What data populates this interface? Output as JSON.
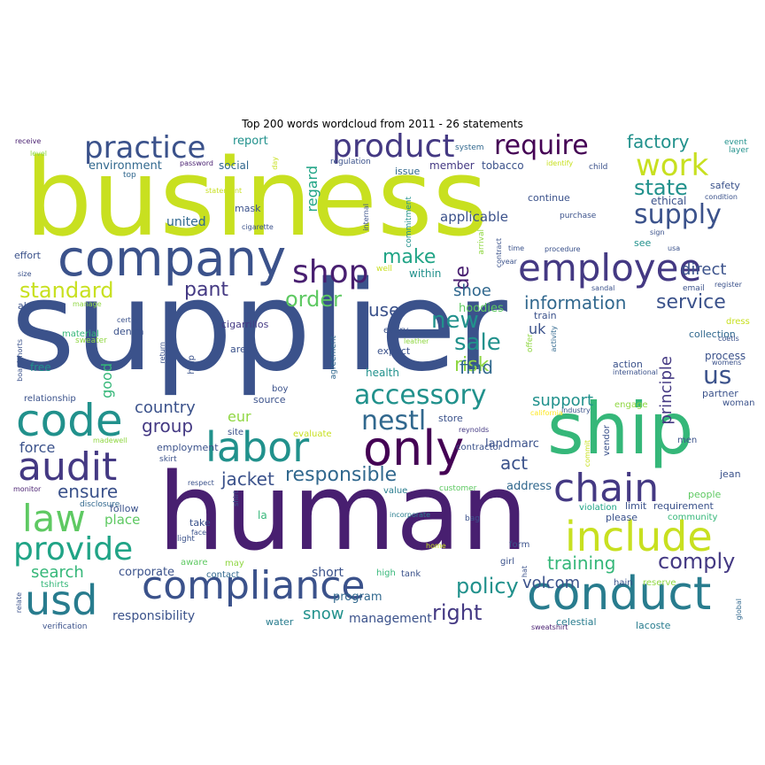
{
  "title": "Top 200 words wordcloud from 2011 - 26 statements",
  "chart_data": {
    "type": "wordcloud",
    "title": "Top 200 words wordcloud from 2011 - 26 statements",
    "colormap": "viridis",
    "words": [
      {
        "text": "supplier",
        "rank": 1
      },
      {
        "text": "business",
        "rank": 2
      },
      {
        "text": "human",
        "rank": 3
      },
      {
        "text": "ship",
        "rank": 4
      },
      {
        "text": "company",
        "rank": 5
      },
      {
        "text": "code",
        "rank": 6
      },
      {
        "text": "conduct",
        "rank": 7
      },
      {
        "text": "compliance",
        "rank": 8
      },
      {
        "text": "labor",
        "rank": 9
      },
      {
        "text": "only",
        "rank": 10
      },
      {
        "text": "employee",
        "rank": 11
      },
      {
        "text": "usd",
        "rank": 12
      },
      {
        "text": "audit",
        "rank": 13
      },
      {
        "text": "include",
        "rank": 14
      },
      {
        "text": "product",
        "rank": 15
      },
      {
        "text": "practice",
        "rank": 16
      },
      {
        "text": "chain",
        "rank": 17
      },
      {
        "text": "law",
        "rank": 18
      },
      {
        "text": "provide",
        "rank": 19
      },
      {
        "text": "require",
        "rank": 20
      },
      {
        "text": "work",
        "rank": 21
      },
      {
        "text": "shop",
        "rank": 22
      },
      {
        "text": "supply",
        "rank": 23
      },
      {
        "text": "accessory",
        "rank": 24
      },
      {
        "text": "responsible",
        "rank": 25
      },
      {
        "text": "comply",
        "rank": 26
      },
      {
        "text": "nestl",
        "rank": 27
      },
      {
        "text": "standard",
        "rank": 28
      },
      {
        "text": "policy",
        "rank": 29
      },
      {
        "text": "state",
        "rank": 30
      },
      {
        "text": "order",
        "rank": 31
      },
      {
        "text": "make",
        "rank": 32
      },
      {
        "text": "sale",
        "rank": 33
      },
      {
        "text": "new",
        "rank": 34
      },
      {
        "text": "information",
        "rank": 35
      },
      {
        "text": "service",
        "rank": 36
      },
      {
        "text": "right",
        "rank": 37
      },
      {
        "text": "training",
        "rank": 38
      },
      {
        "text": "us",
        "rank": 39
      },
      {
        "text": "risk",
        "rank": 40
      },
      {
        "text": "pant",
        "rank": 41
      },
      {
        "text": "factory",
        "rank": 42
      },
      {
        "text": "jacket",
        "rank": 43
      },
      {
        "text": "group",
        "rank": 44
      },
      {
        "text": "principle",
        "rank": 45
      },
      {
        "text": "de",
        "rank": 46
      },
      {
        "text": "find",
        "rank": 47
      },
      {
        "text": "snow",
        "rank": 48
      },
      {
        "text": "support",
        "rank": 49
      },
      {
        "text": "ensure",
        "rank": 50
      },
      {
        "text": "act",
        "rank": 51
      },
      {
        "text": "search",
        "rank": 52
      },
      {
        "text": "country",
        "rank": 53
      },
      {
        "text": "volcom",
        "rank": 54
      },
      {
        "text": "direct",
        "rank": 55
      },
      {
        "text": "use",
        "rank": 56
      },
      {
        "text": "shoe",
        "rank": 57
      },
      {
        "text": "management",
        "rank": 58
      },
      {
        "text": "responsibility",
        "rank": 59
      },
      {
        "text": "applicable",
        "rank": 60
      },
      {
        "text": "force",
        "rank": 61
      },
      {
        "text": "good",
        "rank": 62
      },
      {
        "text": "eur",
        "rank": 63
      },
      {
        "text": "regard",
        "rank": 64
      },
      {
        "text": "uk",
        "rank": 65
      },
      {
        "text": "short",
        "rank": 66
      },
      {
        "text": "corporate",
        "rank": 67
      },
      {
        "text": "place",
        "rank": 68
      },
      {
        "text": "united",
        "rank": 69
      },
      {
        "text": "hoodies",
        "rank": 70
      },
      {
        "text": "environment",
        "rank": 71
      },
      {
        "text": "address",
        "rank": 72
      },
      {
        "text": "report",
        "rank": 73
      },
      {
        "text": "program",
        "rank": 74
      },
      {
        "text": "landmarc",
        "rank": 75
      },
      {
        "text": "process",
        "rank": 76
      },
      {
        "text": "member",
        "rank": 77
      },
      {
        "text": "tobacco",
        "rank": 78
      },
      {
        "text": "social",
        "rank": 79
      },
      {
        "text": "mask",
        "rank": 80
      },
      {
        "text": "ethical",
        "rank": 81
      },
      {
        "text": "safety",
        "rank": 82
      },
      {
        "text": "health",
        "rank": 83
      },
      {
        "text": "within",
        "rank": 84
      },
      {
        "text": "limit",
        "rank": 85
      },
      {
        "text": "requirement",
        "rank": 86
      },
      {
        "text": "partner",
        "rank": 87
      },
      {
        "text": "issue",
        "rank": 88
      },
      {
        "text": "continue",
        "rank": 89
      },
      {
        "text": "see",
        "rank": 90
      },
      {
        "text": "please",
        "rank": 91
      },
      {
        "text": "jean",
        "rank": 92
      },
      {
        "text": "la",
        "rank": 93
      },
      {
        "text": "follow",
        "rank": 94
      },
      {
        "text": "store",
        "rank": 95
      },
      {
        "text": "take",
        "rank": 96
      },
      {
        "text": "employment",
        "rank": 97
      },
      {
        "text": "source",
        "rank": 98
      },
      {
        "text": "area",
        "rank": 99
      },
      {
        "text": "collection",
        "rank": 100
      },
      {
        "text": "action",
        "rank": 101
      },
      {
        "text": "denim",
        "rank": 102
      },
      {
        "text": "cigarrillos",
        "rank": 103
      },
      {
        "text": "boy",
        "rank": 104
      },
      {
        "text": "expect",
        "rank": 105
      },
      {
        "text": "every",
        "rank": 106
      },
      {
        "text": "train",
        "rank": 107
      },
      {
        "text": "help",
        "rank": 108
      },
      {
        "text": "free",
        "rank": 109
      },
      {
        "text": "effort",
        "rank": 110
      },
      {
        "text": "also",
        "rank": 111
      },
      {
        "text": "water",
        "rank": 112
      },
      {
        "text": "celestial",
        "rank": 113
      },
      {
        "text": "lacoste",
        "rank": 114
      },
      {
        "text": "tshirts",
        "rank": 115
      },
      {
        "text": "relationship",
        "rank": 116
      },
      {
        "text": "hain",
        "rank": 117
      },
      {
        "text": "reserve",
        "rank": 118
      },
      {
        "text": "woman",
        "rank": 119
      },
      {
        "text": "contractor",
        "rank": 120
      },
      {
        "text": "vendor",
        "rank": 121
      },
      {
        "text": "customer",
        "rank": 122
      },
      {
        "text": "value",
        "rank": 123
      },
      {
        "text": "people",
        "rank": 124
      },
      {
        "text": "community",
        "rank": 125
      },
      {
        "text": "violation",
        "rank": 126
      },
      {
        "text": "form",
        "rank": 127
      },
      {
        "text": "girl",
        "rank": 128
      },
      {
        "text": "tank",
        "rank": 129
      },
      {
        "text": "high",
        "rank": 130
      },
      {
        "text": "may",
        "rank": 131
      },
      {
        "text": "aware",
        "rank": 132
      },
      {
        "text": "contact",
        "rank": 133
      },
      {
        "text": "evaluate",
        "rank": 134
      },
      {
        "text": "site",
        "rank": 135
      },
      {
        "text": "skirt",
        "rank": 136
      },
      {
        "text": "madewell",
        "rank": 137
      },
      {
        "text": "disclosure",
        "rank": 138
      },
      {
        "text": "verification",
        "rank": 139
      },
      {
        "text": "sweatshirt",
        "rank": 140
      },
      {
        "text": "dress",
        "rank": 141
      },
      {
        "text": "men",
        "rank": 142
      },
      {
        "text": "engage",
        "rank": 143
      },
      {
        "text": "international",
        "rank": 144
      },
      {
        "text": "reynolds",
        "rank": 145
      },
      {
        "text": "california",
        "rank": 146
      },
      {
        "text": "industry",
        "rank": 147
      },
      {
        "text": "manage",
        "rank": 148
      },
      {
        "text": "material",
        "rank": 149
      },
      {
        "text": "sweater",
        "rank": 150
      },
      {
        "text": "certify",
        "rank": 151
      },
      {
        "text": "boardshorts",
        "rank": 152
      },
      {
        "text": "return",
        "rank": 153
      },
      {
        "text": "agreement",
        "rank": 154
      },
      {
        "text": "leather",
        "rank": 155
      },
      {
        "text": "offer",
        "rank": 156
      },
      {
        "text": "activity",
        "rank": 157
      },
      {
        "text": "commitment",
        "rank": 158
      },
      {
        "text": "internal",
        "rank": 159
      },
      {
        "text": "arrival",
        "rank": 160
      },
      {
        "text": "contract",
        "rank": 161
      },
      {
        "text": "purchase",
        "rank": 162
      },
      {
        "text": "procedure",
        "rank": 163
      },
      {
        "text": "time",
        "rank": 164
      },
      {
        "text": "year",
        "rank": 165
      },
      {
        "text": "usa",
        "rank": 166
      },
      {
        "text": "sign",
        "rank": 167
      },
      {
        "text": "email",
        "rank": 168
      },
      {
        "text": "register",
        "rank": 169
      },
      {
        "text": "sandal",
        "rank": 170
      },
      {
        "text": "condition",
        "rank": 171
      },
      {
        "text": "layer",
        "rank": 172
      },
      {
        "text": "event",
        "rank": 173
      },
      {
        "text": "child",
        "rank": 174
      },
      {
        "text": "identify",
        "rank": 175
      },
      {
        "text": "password",
        "rank": 176
      },
      {
        "text": "regulation",
        "rank": 177
      },
      {
        "text": "system",
        "rank": 178
      },
      {
        "text": "receive",
        "rank": 179
      },
      {
        "text": "level",
        "rank": 180
      },
      {
        "text": "top",
        "rank": 181
      },
      {
        "text": "statement",
        "rank": 182
      },
      {
        "text": "cigarette",
        "rank": 183
      },
      {
        "text": "day",
        "rank": 184
      },
      {
        "text": "size",
        "rank": 185
      },
      {
        "text": "well",
        "rank": 186
      },
      {
        "text": "womens",
        "rank": 187
      },
      {
        "text": "coetis",
        "rank": 188
      },
      {
        "text": "global",
        "rank": 189
      },
      {
        "text": "respect",
        "rank": 190
      },
      {
        "text": "light",
        "rank": 191
      },
      {
        "text": "face",
        "rank": 192
      },
      {
        "text": "shirt",
        "rank": 193
      },
      {
        "text": "monitor",
        "rank": 194
      },
      {
        "text": "relate",
        "rank": 195
      },
      {
        "text": "incorporate",
        "rank": 196
      },
      {
        "text": "home",
        "rank": 197
      },
      {
        "text": "bag",
        "rank": 198
      },
      {
        "text": "hat",
        "rank": 199
      },
      {
        "text": "commit",
        "rank": 200
      }
    ],
    "palette": [
      "#440154",
      "#481f70",
      "#443983",
      "#3b528b",
      "#31688e",
      "#287c8e",
      "#21918c",
      "#20a486",
      "#35b779",
      "#5ec962",
      "#90d743",
      "#c8e020",
      "#fde725"
    ]
  }
}
